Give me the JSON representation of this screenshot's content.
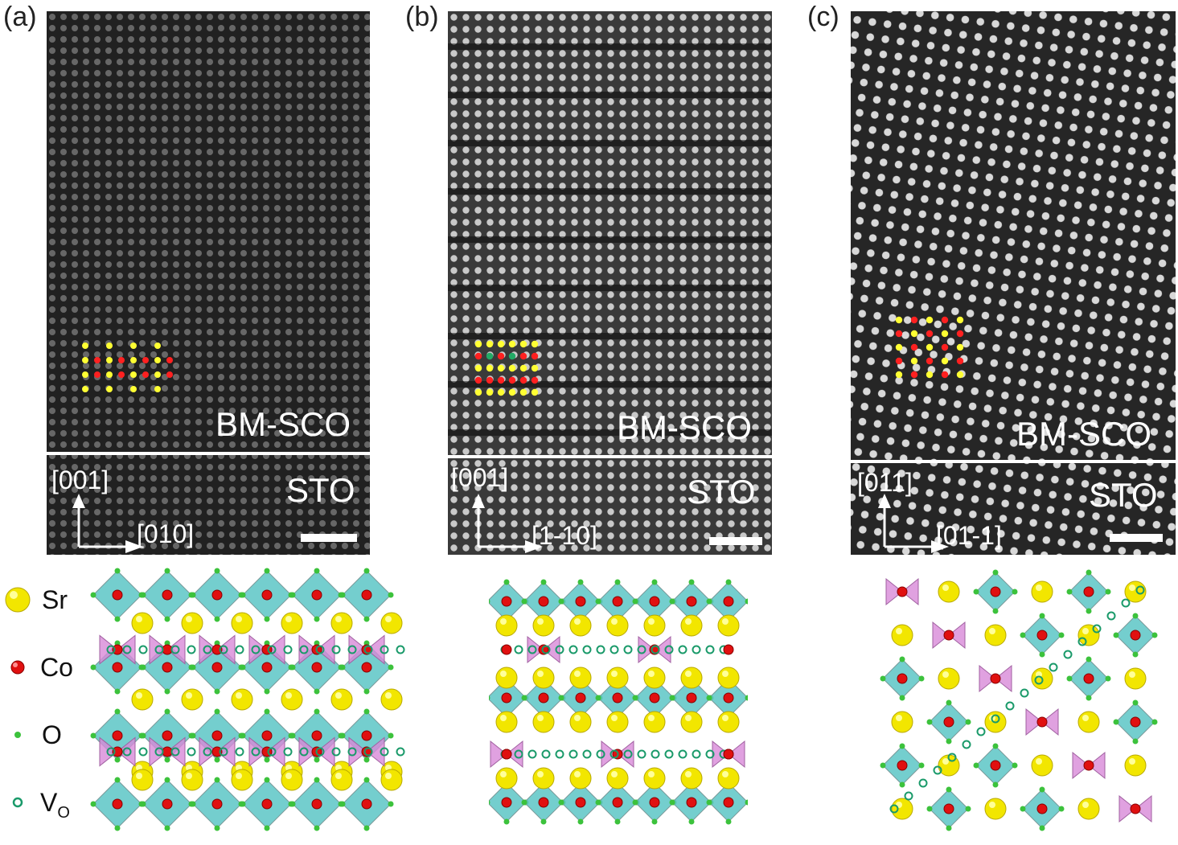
{
  "panels": [
    {
      "label": "(a)",
      "film": "BM-SCO",
      "substrate": "STO",
      "axis_up": "[001]",
      "axis_right": "[010]"
    },
    {
      "label": "(b)",
      "film": "BM-SCO",
      "substrate": "STO",
      "axis_up": "[001]",
      "axis_right": "[1-10]"
    },
    {
      "label": "(c)",
      "film": "BM-SCO",
      "substrate": "STO",
      "axis_up": "[011]",
      "axis_right": "[01-1]"
    }
  ],
  "legend": [
    {
      "symbol": "Sr",
      "color": "#f2e600"
    },
    {
      "symbol": "Co",
      "color": "#e01010"
    },
    {
      "symbol": "O",
      "color": "#3cc23c"
    },
    {
      "symbol": "V",
      "subscript": "O",
      "color": "#1a9a6a"
    }
  ],
  "colors": {
    "octahedron": "#5cc6c6",
    "tetrahedron": "#d88ad8",
    "marker_sr": "#ffff33",
    "marker_co": "#ff2020"
  }
}
